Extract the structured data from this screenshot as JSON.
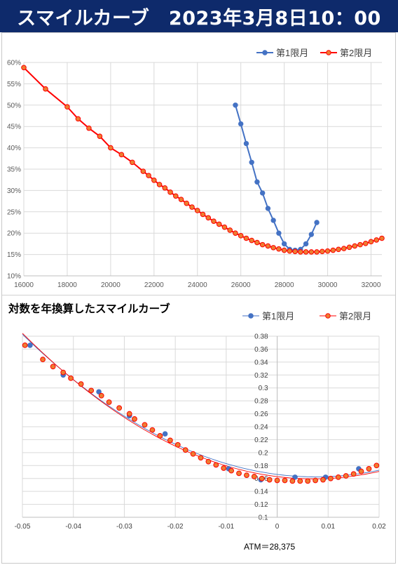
{
  "banner": {
    "title": "スマイルカーブ　2023年3月8日10：00"
  },
  "chart_data": [
    {
      "type": "line",
      "title": "",
      "xlabel": "",
      "ylabel": "",
      "xlim": [
        16000,
        32500
      ],
      "ylim": [
        10,
        60
      ],
      "x_ticks": [
        16000,
        18000,
        20000,
        22000,
        24000,
        26000,
        28000,
        30000,
        32000
      ],
      "y_ticks": [
        10,
        15,
        20,
        25,
        30,
        35,
        40,
        45,
        50,
        55,
        60
      ],
      "y_tick_labels": [
        "10%",
        "15%",
        "20%",
        "25%",
        "30%",
        "35%",
        "40%",
        "45%",
        "50%",
        "55%",
        "60%"
      ],
      "grid": true,
      "legend": "top-right",
      "series": [
        {
          "name": "第1限月",
          "color": "#4472c4",
          "points": [
            [
              25750,
              50.0
            ],
            [
              26000,
              45.6
            ],
            [
              26250,
              41.0
            ],
            [
              26500,
              36.6
            ],
            [
              26750,
              32.0
            ],
            [
              27000,
              29.4
            ],
            [
              27250,
              25.8
            ],
            [
              27500,
              23.0
            ],
            [
              27750,
              20.0
            ],
            [
              28000,
              17.5
            ],
            [
              28250,
              16.2
            ],
            [
              28500,
              16.0
            ],
            [
              28750,
              16.2
            ],
            [
              29000,
              17.5
            ],
            [
              29250,
              19.7
            ],
            [
              29500,
              22.5
            ]
          ]
        },
        {
          "name": "第2限月",
          "color": "#ff0000",
          "points": [
            [
              16000,
              58.8
            ],
            [
              17000,
              53.8
            ],
            [
              18000,
              49.6
            ],
            [
              18500,
              46.8
            ],
            [
              19000,
              44.6
            ],
            [
              19500,
              42.7
            ],
            [
              20000,
              40.0
            ],
            [
              20500,
              38.4
            ],
            [
              21000,
              36.6
            ],
            [
              21500,
              34.5
            ],
            [
              21750,
              33.5
            ],
            [
              22000,
              32.4
            ],
            [
              22250,
              31.4
            ],
            [
              22500,
              30.6
            ],
            [
              22750,
              29.6
            ],
            [
              23000,
              28.7
            ],
            [
              23250,
              27.9
            ],
            [
              23500,
              27.0
            ],
            [
              23750,
              26.1
            ],
            [
              24000,
              25.3
            ],
            [
              24250,
              24.4
            ],
            [
              24500,
              23.6
            ],
            [
              24750,
              22.8
            ],
            [
              25000,
              22.1
            ],
            [
              25250,
              21.4
            ],
            [
              25500,
              20.7
            ],
            [
              25750,
              20.0
            ],
            [
              26000,
              19.4
            ],
            [
              26250,
              18.8
            ],
            [
              26500,
              18.3
            ],
            [
              26750,
              17.8
            ],
            [
              27000,
              17.3
            ],
            [
              27250,
              17.0
            ],
            [
              27500,
              16.6
            ],
            [
              27750,
              16.3
            ],
            [
              28000,
              16.0
            ],
            [
              28250,
              15.8
            ],
            [
              28500,
              15.7
            ],
            [
              28750,
              15.6
            ],
            [
              29000,
              15.6
            ],
            [
              29250,
              15.6
            ],
            [
              29500,
              15.6
            ],
            [
              29750,
              15.7
            ],
            [
              30000,
              15.8
            ],
            [
              30250,
              16.0
            ],
            [
              30500,
              16.2
            ],
            [
              30750,
              16.4
            ],
            [
              31000,
              16.7
            ],
            [
              31250,
              17.0
            ],
            [
              31500,
              17.3
            ],
            [
              31750,
              17.6
            ],
            [
              32000,
              18.0
            ],
            [
              32250,
              18.4
            ],
            [
              32500,
              18.8
            ]
          ]
        }
      ]
    },
    {
      "type": "scatter",
      "title": "対数を年換算したスマイルカーブ",
      "xlabel": "",
      "ylabel": "",
      "xlim": [
        -0.05,
        0.02
      ],
      "ylim": [
        0.1,
        0.38
      ],
      "x_ticks": [
        -0.05,
        -0.04,
        -0.03,
        -0.02,
        -0.01,
        0,
        0.01,
        0.02
      ],
      "x_tick_labels": [
        "-0.05",
        "-0.04",
        "-0.03",
        "-0.02",
        "-0.01",
        "0",
        "0.01",
        "0.02"
      ],
      "y_ticks": [
        0.1,
        0.12,
        0.14,
        0.16,
        0.18,
        0.2,
        0.22,
        0.24,
        0.26,
        0.28,
        0.3,
        0.32,
        0.34,
        0.36,
        0.38
      ],
      "y_tick_labels": [
        "0.1",
        "0.12",
        "0.14",
        "0.16",
        "0.18",
        "0.2",
        "0.22",
        "0.24",
        "0.26",
        "0.28",
        "0.3",
        "0.32",
        "0.34",
        "0.36",
        "0.38"
      ],
      "grid": true,
      "legend": "top-right",
      "annotation": "ATM＝28,375",
      "series": [
        {
          "name": "第1限月",
          "color": "#4472c4",
          "trendline": true,
          "points": [
            [
              -0.0485,
              0.366
            ],
            [
              -0.042,
              0.32
            ],
            [
              -0.035,
              0.294
            ],
            [
              -0.029,
              0.257
            ],
            [
              -0.022,
              0.229
            ],
            [
              -0.0095,
              0.175
            ],
            [
              -0.0032,
              0.158
            ],
            [
              0.0035,
              0.162
            ],
            [
              0.0095,
              0.162
            ],
            [
              0.016,
              0.175
            ]
          ]
        },
        {
          "name": "第2限月",
          "color": "#ff0000",
          "trendline": true,
          "points": [
            [
              -0.0495,
              0.366
            ],
            [
              -0.046,
              0.344
            ],
            [
              -0.044,
              0.333
            ],
            [
              -0.042,
              0.324
            ],
            [
              -0.0405,
              0.315
            ],
            [
              -0.0385,
              0.306
            ],
            [
              -0.0365,
              0.296
            ],
            [
              -0.0345,
              0.288
            ],
            [
              -0.033,
              0.278
            ],
            [
              -0.031,
              0.269
            ],
            [
              -0.029,
              0.26
            ],
            [
              -0.028,
              0.252
            ],
            [
              -0.026,
              0.243
            ],
            [
              -0.0245,
              0.235
            ],
            [
              -0.023,
              0.226
            ],
            [
              -0.021,
              0.219
            ],
            [
              -0.0195,
              0.212
            ],
            [
              -0.018,
              0.204
            ],
            [
              -0.0165,
              0.198
            ],
            [
              -0.015,
              0.192
            ],
            [
              -0.0135,
              0.186
            ],
            [
              -0.012,
              0.181
            ],
            [
              -0.0105,
              0.176
            ],
            [
              -0.009,
              0.172
            ],
            [
              -0.0075,
              0.168
            ],
            [
              -0.006,
              0.165
            ],
            [
              -0.0045,
              0.163
            ],
            [
              -0.003,
              0.16
            ],
            [
              -0.0015,
              0.158
            ],
            [
              0.0,
              0.157
            ],
            [
              0.0015,
              0.157
            ],
            [
              0.003,
              0.156
            ],
            [
              0.0045,
              0.156
            ],
            [
              0.006,
              0.156
            ],
            [
              0.0075,
              0.157
            ],
            [
              0.009,
              0.158
            ],
            [
              0.0105,
              0.16
            ],
            [
              0.012,
              0.162
            ],
            [
              0.0135,
              0.164
            ],
            [
              0.015,
              0.167
            ],
            [
              0.0165,
              0.171
            ],
            [
              0.018,
              0.175
            ],
            [
              0.0195,
              0.18
            ]
          ]
        }
      ]
    }
  ]
}
